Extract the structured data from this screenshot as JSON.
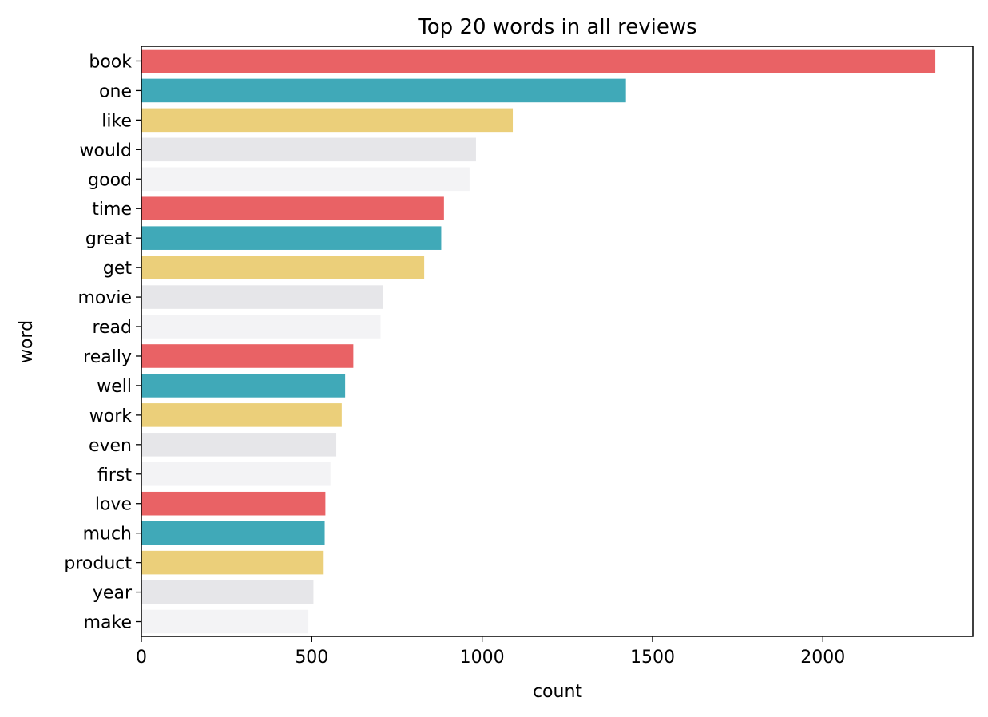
{
  "chart_data": {
    "type": "bar",
    "orientation": "horizontal",
    "title": "Top 20 words in all reviews",
    "xlabel": "count",
    "ylabel": "word",
    "xlim": [
      0,
      2440
    ],
    "xticks": [
      0,
      500,
      1000,
      1500,
      2000
    ],
    "grid": false,
    "categories": [
      "book",
      "one",
      "like",
      "would",
      "good",
      "time",
      "great",
      "get",
      "movie",
      "read",
      "really",
      "well",
      "work",
      "even",
      "first",
      "love",
      "much",
      "product",
      "year",
      "make"
    ],
    "values": [
      2330,
      1422,
      1090,
      982,
      963,
      888,
      880,
      830,
      710,
      702,
      622,
      598,
      588,
      572,
      555,
      540,
      538,
      535,
      505,
      490
    ],
    "palette": [
      "#e96265",
      "#40a9b8",
      "#ebcf7a",
      "#e6e6e9",
      "#f3f3f5"
    ]
  }
}
